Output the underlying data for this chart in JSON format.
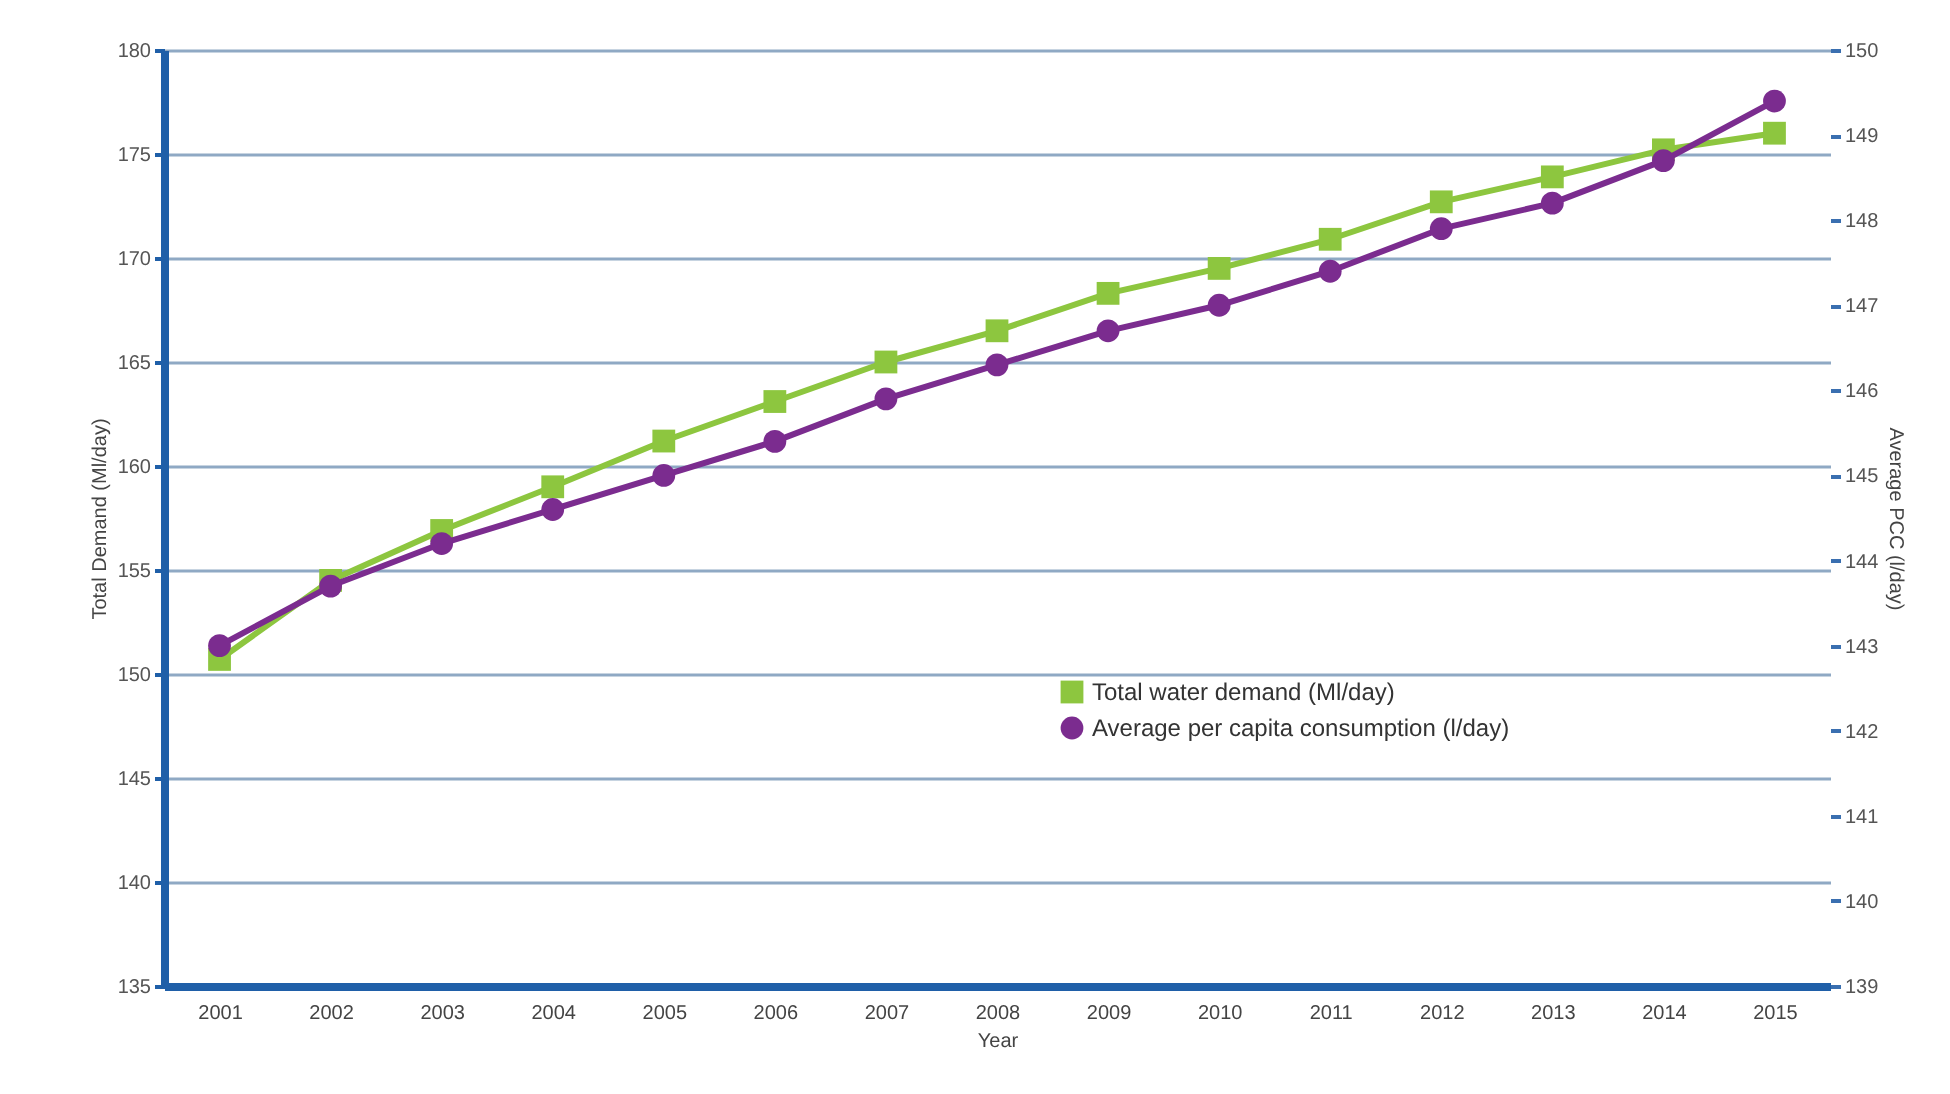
{
  "chart_data": {
    "type": "line",
    "xlabel": "Year",
    "ylabel": "Total Demand (Ml/day)",
    "y2label": "Average PCC (l/day)",
    "categories": [
      "2001",
      "2002",
      "2003",
      "2004",
      "2005",
      "2006",
      "2007",
      "2008",
      "2009",
      "2010",
      "2011",
      "2012",
      "2013",
      "2014",
      "2015"
    ],
    "series": [
      {
        "name": "Total water demand (Ml/day)",
        "color": "#8dc63f",
        "marker": "square",
        "values": [
          150.7,
          154.5,
          156.9,
          159.0,
          161.2,
          163.1,
          165.0,
          166.5,
          168.3,
          169.5,
          170.9,
          172.7,
          173.9,
          175.2,
          176.0
        ]
      },
      {
        "name": "Average per capita consumption (l/day)",
        "color": "#7b2c8f",
        "marker": "circle",
        "axis": "y2",
        "values": [
          143.0,
          143.7,
          144.2,
          144.6,
          145.0,
          145.4,
          145.9,
          146.3,
          146.7,
          147.0,
          147.4,
          147.9,
          148.2,
          148.7,
          149.4
        ]
      }
    ],
    "ylim": [
      135,
      180
    ],
    "yticks": [
      135,
      140,
      145,
      150,
      155,
      160,
      165,
      170,
      175,
      180
    ],
    "y2lim": [
      139,
      150
    ],
    "y2ticks": [
      139,
      140,
      141,
      142,
      143,
      144,
      145,
      146,
      147,
      148,
      149,
      150
    ],
    "grid": "y",
    "legend": "bottom right"
  }
}
